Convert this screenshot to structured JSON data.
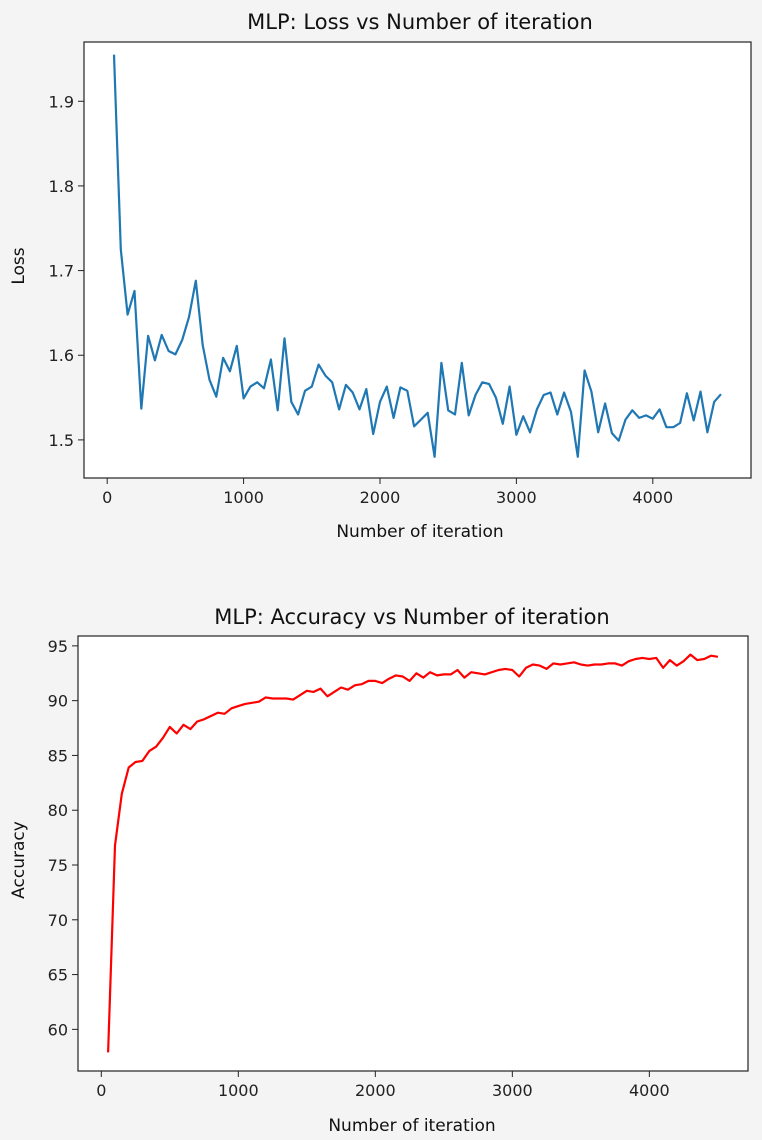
{
  "chart_data": [
    {
      "type": "line",
      "title": "MLP: Loss vs Number of iteration",
      "xlabel": "Number of iteration",
      "ylabel": "Loss",
      "xlim": [
        -170,
        4720
      ],
      "ylim": [
        1.455,
        1.97
      ],
      "xticks": [
        0,
        1000,
        2000,
        3000,
        4000
      ],
      "yticks": [
        1.5,
        1.6,
        1.7,
        1.8,
        1.9
      ],
      "ytick_labels": [
        "1.5",
        "1.6",
        "1.7",
        "1.8",
        "1.9"
      ],
      "grid": false,
      "series": [
        {
          "color": "#1f77b4",
          "x": [
            50,
            100,
            150,
            200,
            250,
            300,
            350,
            400,
            450,
            500,
            550,
            600,
            650,
            700,
            750,
            800,
            850,
            900,
            950,
            1000,
            1050,
            1100,
            1150,
            1200,
            1250,
            1300,
            1350,
            1400,
            1450,
            1500,
            1550,
            1600,
            1650,
            1700,
            1750,
            1800,
            1850,
            1900,
            1950,
            2000,
            2050,
            2100,
            2150,
            2200,
            2250,
            2300,
            2350,
            2400,
            2450,
            2500,
            2550,
            2600,
            2650,
            2700,
            2750,
            2800,
            2850,
            2900,
            2950,
            3000,
            3050,
            3100,
            3150,
            3200,
            3250,
            3300,
            3350,
            3400,
            3450,
            3500,
            3550,
            3600,
            3650,
            3700,
            3750,
            3800,
            3850,
            3900,
            3950,
            4000,
            4050,
            4100,
            4150,
            4200,
            4250,
            4300,
            4350,
            4400,
            4450,
            4500
          ],
          "values": [
            1.955,
            1.725,
            1.648,
            1.676,
            1.537,
            1.623,
            1.594,
            1.624,
            1.605,
            1.601,
            1.618,
            1.645,
            1.688,
            1.612,
            1.571,
            1.551,
            1.597,
            1.581,
            1.611,
            1.549,
            1.563,
            1.568,
            1.561,
            1.595,
            1.535,
            1.62,
            1.545,
            1.53,
            1.558,
            1.563,
            1.589,
            1.576,
            1.568,
            1.536,
            1.565,
            1.556,
            1.536,
            1.56,
            1.507,
            1.545,
            1.563,
            1.526,
            1.562,
            1.558,
            1.516,
            1.524,
            1.532,
            1.48,
            1.591,
            1.535,
            1.53,
            1.591,
            1.529,
            1.553,
            1.568,
            1.566,
            1.55,
            1.519,
            1.563,
            1.506,
            1.528,
            1.509,
            1.536,
            1.553,
            1.556,
            1.53,
            1.556,
            1.533,
            1.48,
            1.582,
            1.557,
            1.509,
            1.543,
            1.508,
            1.499,
            1.524,
            1.535,
            1.526,
            1.529,
            1.525,
            1.536,
            1.515,
            1.515,
            1.52,
            1.555,
            1.523,
            1.557,
            1.509,
            1.545,
            1.554
          ]
        }
      ]
    },
    {
      "type": "line",
      "title": "MLP: Accuracy vs Number of iteration",
      "xlabel": "Number of iteration",
      "ylabel": "Accuracy",
      "xlim": [
        -170,
        4720
      ],
      "ylim": [
        56.2,
        95.9
      ],
      "xticks": [
        0,
        1000,
        2000,
        3000,
        4000
      ],
      "yticks": [
        60,
        65,
        70,
        75,
        80,
        85,
        90,
        95
      ],
      "ytick_labels": [
        "60",
        "65",
        "70",
        "75",
        "80",
        "85",
        "90",
        "95"
      ],
      "grid": false,
      "series": [
        {
          "color": "#ff0000",
          "x": [
            50,
            100,
            150,
            200,
            250,
            300,
            350,
            400,
            450,
            500,
            550,
            600,
            650,
            700,
            750,
            800,
            850,
            900,
            950,
            1000,
            1050,
            1100,
            1150,
            1200,
            1250,
            1300,
            1350,
            1400,
            1450,
            1500,
            1550,
            1600,
            1650,
            1700,
            1750,
            1800,
            1850,
            1900,
            1950,
            2000,
            2050,
            2100,
            2150,
            2200,
            2250,
            2300,
            2350,
            2400,
            2450,
            2500,
            2550,
            2600,
            2650,
            2700,
            2750,
            2800,
            2850,
            2900,
            2950,
            3000,
            3050,
            3100,
            3150,
            3200,
            3250,
            3300,
            3350,
            3400,
            3450,
            3500,
            3550,
            3600,
            3650,
            3700,
            3750,
            3800,
            3850,
            3900,
            3950,
            4000,
            4050,
            4100,
            4150,
            4200,
            4250,
            4300,
            4350,
            4400,
            4450,
            4500
          ],
          "values": [
            57.9,
            76.8,
            81.5,
            83.9,
            84.4,
            84.5,
            85.4,
            85.8,
            86.6,
            87.6,
            87.0,
            87.8,
            87.4,
            88.1,
            88.3,
            88.6,
            88.9,
            88.8,
            89.3,
            89.5,
            89.7,
            89.8,
            89.9,
            90.3,
            90.2,
            90.2,
            90.2,
            90.1,
            90.5,
            90.9,
            90.8,
            91.1,
            90.4,
            90.8,
            91.2,
            91.0,
            91.4,
            91.5,
            91.8,
            91.8,
            91.6,
            92.0,
            92.3,
            92.2,
            91.8,
            92.5,
            92.1,
            92.6,
            92.3,
            92.4,
            92.4,
            92.8,
            92.1,
            92.6,
            92.5,
            92.4,
            92.6,
            92.8,
            92.9,
            92.8,
            92.2,
            93.0,
            93.3,
            93.2,
            92.9,
            93.4,
            93.3,
            93.4,
            93.5,
            93.3,
            93.2,
            93.3,
            93.3,
            93.4,
            93.4,
            93.2,
            93.6,
            93.8,
            93.9,
            93.8,
            93.9,
            93.0,
            93.7,
            93.2,
            93.6,
            94.2,
            93.7,
            93.8,
            94.1,
            94.0
          ]
        }
      ]
    }
  ]
}
